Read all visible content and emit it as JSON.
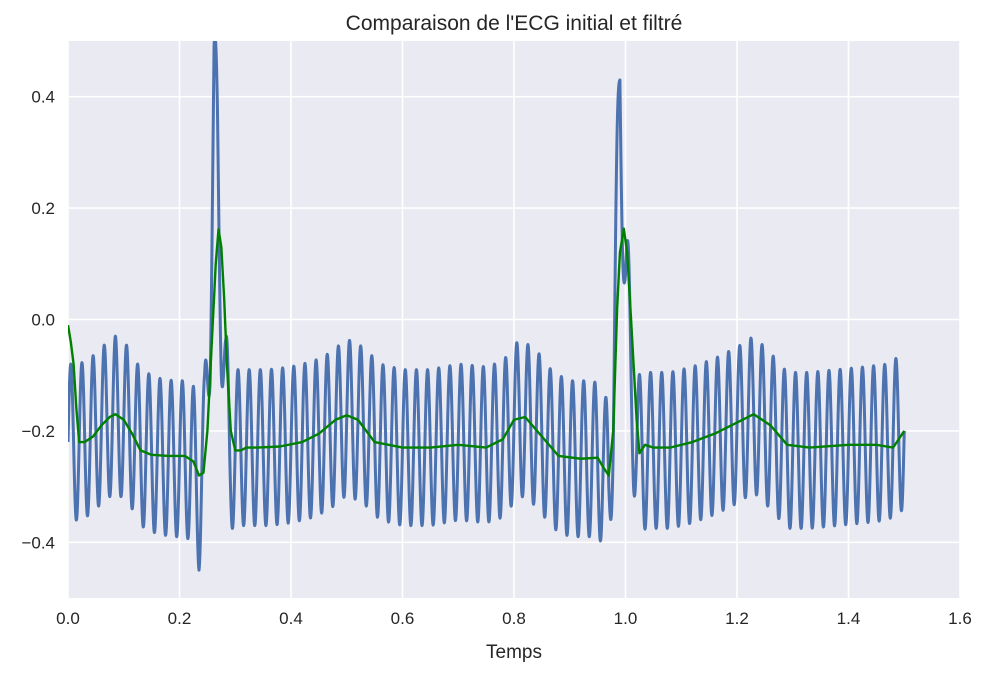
{
  "chart_data": {
    "type": "line",
    "title": "Comparaison de l'ECG initial et filtré",
    "xlabel": "Temps",
    "ylabel": "",
    "xlim": [
      0.0,
      1.6
    ],
    "ylim": [
      -0.5,
      0.5
    ],
    "xticks": [
      0.0,
      0.2,
      0.4,
      0.6,
      0.8,
      1.0,
      1.2,
      1.4,
      1.6
    ],
    "xtick_labels": [
      "0.0",
      "0.2",
      "0.4",
      "0.6",
      "0.8",
      "1.0",
      "1.2",
      "1.4",
      "1.6"
    ],
    "yticks": [
      -0.4,
      -0.2,
      0.0,
      0.2,
      0.4
    ],
    "ytick_labels": [
      "−0.4",
      "−0.2",
      "0.0",
      "0.2",
      "0.4"
    ],
    "grid": true,
    "background_color": "#EAEAF2",
    "grid_color": "#FFFFFF",
    "series": [
      {
        "color": "#4C72B0",
        "oscillation_hz": 50,
        "oscillation_amplitude": 0.14,
        "x": [
          0.0,
          0.02,
          0.04,
          0.06,
          0.085,
          0.11,
          0.13,
          0.16,
          0.19,
          0.21,
          0.225,
          0.235,
          0.245,
          0.255,
          0.262,
          0.268,
          0.275,
          0.283,
          0.29,
          0.3,
          0.32,
          0.36,
          0.4,
          0.44,
          0.47,
          0.5,
          0.53,
          0.56,
          0.6,
          0.65,
          0.7,
          0.75,
          0.78,
          0.81,
          0.84,
          0.87,
          0.9,
          0.94,
          0.96,
          0.97,
          0.978,
          0.985,
          0.99,
          0.995,
          1.0,
          1.01,
          1.02,
          1.04,
          1.08,
          1.12,
          1.16,
          1.2,
          1.23,
          1.26,
          1.29,
          1.33,
          1.38,
          1.43,
          1.47,
          1.5
        ],
        "baseline": [
          -0.22,
          -0.22,
          -0.21,
          -0.19,
          -0.17,
          -0.19,
          -0.23,
          -0.245,
          -0.25,
          -0.25,
          -0.26,
          -0.31,
          -0.24,
          0.03,
          0.41,
          0.3,
          0.04,
          -0.15,
          -0.24,
          -0.23,
          -0.23,
          -0.23,
          -0.225,
          -0.215,
          -0.2,
          -0.175,
          -0.19,
          -0.22,
          -0.23,
          -0.23,
          -0.22,
          -0.225,
          -0.215,
          -0.175,
          -0.195,
          -0.235,
          -0.25,
          -0.25,
          -0.26,
          -0.3,
          -0.15,
          0.2,
          0.43,
          0.25,
          0.08,
          -0.1,
          -0.24,
          -0.235,
          -0.235,
          -0.225,
          -0.21,
          -0.19,
          -0.17,
          -0.2,
          -0.235,
          -0.235,
          -0.23,
          -0.225,
          -0.22,
          -0.2
        ]
      },
      {
        "color": "#008000",
        "x": [
          0.0,
          0.005,
          0.01,
          0.015,
          0.02,
          0.03,
          0.045,
          0.06,
          0.075,
          0.085,
          0.1,
          0.115,
          0.13,
          0.15,
          0.18,
          0.21,
          0.225,
          0.235,
          0.243,
          0.25,
          0.258,
          0.265,
          0.27,
          0.275,
          0.28,
          0.285,
          0.292,
          0.3,
          0.31,
          0.32,
          0.34,
          0.38,
          0.42,
          0.45,
          0.48,
          0.5,
          0.52,
          0.55,
          0.6,
          0.65,
          0.7,
          0.75,
          0.78,
          0.8,
          0.82,
          0.85,
          0.88,
          0.92,
          0.95,
          0.96,
          0.97,
          0.978,
          0.985,
          0.99,
          0.997,
          1.003,
          1.01,
          1.02,
          1.025,
          1.035,
          1.05,
          1.08,
          1.12,
          1.16,
          1.2,
          1.23,
          1.26,
          1.29,
          1.33,
          1.4,
          1.45,
          1.48,
          1.5
        ],
        "y": [
          -0.01,
          -0.04,
          -0.08,
          -0.16,
          -0.22,
          -0.22,
          -0.21,
          -0.19,
          -0.175,
          -0.17,
          -0.18,
          -0.205,
          -0.235,
          -0.243,
          -0.245,
          -0.245,
          -0.255,
          -0.28,
          -0.275,
          -0.2,
          -0.04,
          0.1,
          0.162,
          0.13,
          0.04,
          -0.08,
          -0.2,
          -0.235,
          -0.235,
          -0.23,
          -0.23,
          -0.228,
          -0.22,
          -0.205,
          -0.18,
          -0.172,
          -0.18,
          -0.22,
          -0.23,
          -0.23,
          -0.225,
          -0.23,
          -0.215,
          -0.18,
          -0.175,
          -0.21,
          -0.245,
          -0.25,
          -0.248,
          -0.265,
          -0.28,
          -0.2,
          0.02,
          0.12,
          0.163,
          0.12,
          0.0,
          -0.18,
          -0.24,
          -0.225,
          -0.23,
          -0.23,
          -0.22,
          -0.205,
          -0.185,
          -0.17,
          -0.19,
          -0.225,
          -0.23,
          -0.225,
          -0.225,
          -0.23,
          -0.2
        ]
      }
    ]
  }
}
